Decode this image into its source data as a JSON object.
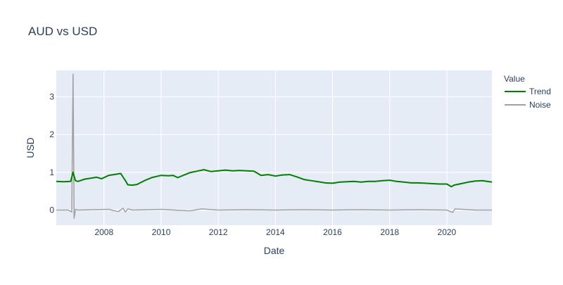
{
  "chart_data": {
    "type": "line",
    "title": "AUD vs USD",
    "xlabel": "Date",
    "ylabel": "USD",
    "xlim": [
      "2006-05-01",
      "2021-07-31"
    ],
    "ylim": [
      -0.4,
      3.7
    ],
    "x_ticks": [
      "2008",
      "2010",
      "2012",
      "2014",
      "2016",
      "2018",
      "2020"
    ],
    "y_ticks": [
      0,
      1,
      2,
      3
    ],
    "grid": true,
    "legend": {
      "title": "Value",
      "position": "top-right"
    },
    "series": [
      {
        "name": "Trend",
        "color": "#008000",
        "x": [
          "2006-05-01",
          "2006-08-01",
          "2006-11-01",
          "2006-12-01",
          "2007-01-01",
          "2007-02-01",
          "2007-05-01",
          "2007-08-01",
          "2007-10-01",
          "2007-12-01",
          "2008-03-01",
          "2008-06-01",
          "2008-08-01",
          "2008-10-01",
          "2008-11-01",
          "2009-01-01",
          "2009-03-01",
          "2009-06-01",
          "2009-09-01",
          "2010-01-01",
          "2010-04-01",
          "2010-06-01",
          "2010-08-01",
          "2011-01-01",
          "2011-04-01",
          "2011-07-01",
          "2011-10-01",
          "2012-01-01",
          "2012-04-01",
          "2012-07-01",
          "2012-10-01",
          "2013-01-01",
          "2013-04-01",
          "2013-07-01",
          "2013-10-01",
          "2014-01-01",
          "2014-04-01",
          "2014-07-01",
          "2014-10-01",
          "2015-01-01",
          "2015-04-01",
          "2015-07-01",
          "2015-10-01",
          "2016-01-01",
          "2016-04-01",
          "2016-07-01",
          "2016-10-01",
          "2017-01-01",
          "2017-04-01",
          "2017-07-01",
          "2017-10-01",
          "2018-01-01",
          "2018-04-01",
          "2018-07-01",
          "2018-10-01",
          "2019-01-01",
          "2019-04-01",
          "2019-07-01",
          "2019-10-01",
          "2020-01-01",
          "2020-03-01",
          "2020-04-01",
          "2020-07-01",
          "2020-10-01",
          "2021-01-01",
          "2021-04-01",
          "2021-07-31"
        ],
        "values": [
          0.76,
          0.75,
          0.76,
          1.0,
          0.78,
          0.76,
          0.82,
          0.85,
          0.87,
          0.83,
          0.92,
          0.95,
          0.97,
          0.78,
          0.67,
          0.66,
          0.68,
          0.78,
          0.86,
          0.92,
          0.91,
          0.92,
          0.86,
          0.99,
          1.03,
          1.07,
          1.02,
          1.04,
          1.06,
          1.04,
          1.05,
          1.04,
          1.03,
          0.92,
          0.94,
          0.9,
          0.93,
          0.94,
          0.88,
          0.81,
          0.78,
          0.75,
          0.72,
          0.71,
          0.74,
          0.75,
          0.76,
          0.74,
          0.76,
          0.76,
          0.78,
          0.79,
          0.76,
          0.74,
          0.72,
          0.72,
          0.71,
          0.7,
          0.69,
          0.69,
          0.62,
          0.66,
          0.7,
          0.74,
          0.77,
          0.78,
          0.74
        ]
      },
      {
        "name": "Noise",
        "color": "#a0a0a0",
        "x": [
          "2006-05-01",
          "2006-10-01",
          "2006-11-15",
          "2006-12-01",
          "2006-12-15",
          "2007-01-01",
          "2007-02-01",
          "2008-03-01",
          "2008-07-01",
          "2008-09-01",
          "2008-10-01",
          "2008-11-01",
          "2009-01-01",
          "2010-01-01",
          "2011-01-01",
          "2011-06-01",
          "2012-01-01",
          "2013-01-01",
          "2014-01-01",
          "2015-01-01",
          "2016-01-01",
          "2017-01-01",
          "2018-01-01",
          "2019-01-01",
          "2020-01-01",
          "2020-03-15",
          "2020-04-15",
          "2021-01-01",
          "2021-07-31"
        ],
        "values": [
          0.0,
          0.0,
          -0.05,
          3.6,
          -0.22,
          0.02,
          0.0,
          0.02,
          -0.04,
          0.05,
          -0.05,
          0.03,
          0.0,
          0.02,
          -0.02,
          0.03,
          0.0,
          0.01,
          0.0,
          0.01,
          0.0,
          0.01,
          0.0,
          0.01,
          0.0,
          -0.06,
          0.03,
          0.0,
          0.0
        ]
      }
    ]
  }
}
